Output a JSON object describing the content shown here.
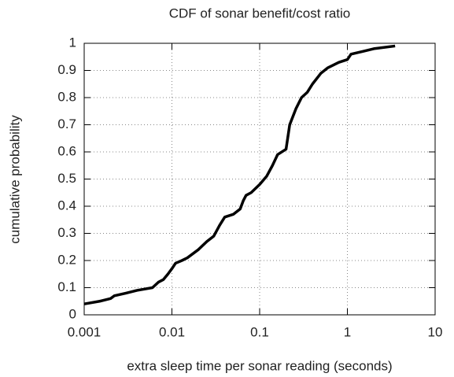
{
  "chart_data": {
    "type": "line",
    "title": "CDF of sonar benefit/cost ratio",
    "xlabel": "extra sleep time per sonar reading (seconds)",
    "ylabel": "cumulative probability",
    "xscale": "log",
    "x": [
      0.001,
      0.0015,
      0.002,
      0.0022,
      0.003,
      0.004,
      0.006,
      0.007,
      0.008,
      0.009,
      0.01,
      0.011,
      0.013,
      0.015,
      0.02,
      0.025,
      0.03,
      0.035,
      0.04,
      0.05,
      0.06,
      0.065,
      0.07,
      0.08,
      0.1,
      0.12,
      0.14,
      0.16,
      0.2,
      0.22,
      0.26,
      0.3,
      0.35,
      0.4,
      0.5,
      0.6,
      0.8,
      1,
      1.1,
      1.5,
      2,
      3.5
    ],
    "values": [
      0.04,
      0.05,
      0.06,
      0.07,
      0.08,
      0.09,
      0.1,
      0.12,
      0.13,
      0.15,
      0.17,
      0.19,
      0.2,
      0.21,
      0.24,
      0.27,
      0.29,
      0.33,
      0.36,
      0.37,
      0.39,
      0.42,
      0.44,
      0.45,
      0.48,
      0.51,
      0.55,
      0.59,
      0.61,
      0.7,
      0.76,
      0.8,
      0.82,
      0.85,
      0.89,
      0.91,
      0.93,
      0.94,
      0.96,
      0.97,
      0.98,
      0.99
    ],
    "color": "#000000",
    "xlim": [
      0.001,
      10
    ],
    "xticks": [
      0.001,
      0.01,
      0.1,
      1,
      10
    ],
    "ylim": [
      0,
      1
    ],
    "yticks": [
      0,
      0.1,
      0.2,
      0.3,
      0.4,
      0.5,
      0.6,
      0.7,
      0.8,
      0.9,
      1
    ],
    "grid": true
  }
}
